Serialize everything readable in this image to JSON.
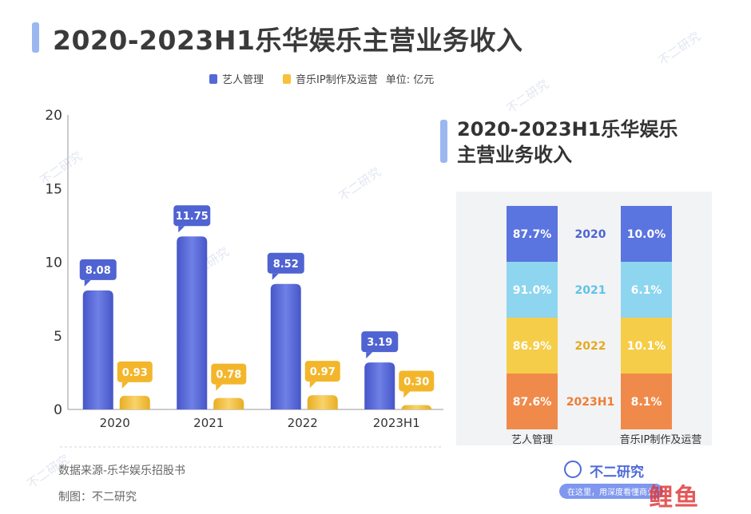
{
  "title": "2020-2023H1乐华娱乐主营业务收入",
  "legend": {
    "artist": "艺人管理",
    "music": "音乐IP制作及运营",
    "unit": "单位: 亿元"
  },
  "colors": {
    "artist": "#5668d6",
    "music": "#f5c23a",
    "accent_bar": "#9bb7f0",
    "pct_2020": "#5a74e0",
    "pct_2021": "#8ed5f0",
    "pct_2022": "#f6cd49",
    "pct_2023": "#f08a4b"
  },
  "chart_data": [
    {
      "type": "bar",
      "categories": [
        "2020",
        "2021",
        "2022",
        "2023H1"
      ],
      "series": [
        {
          "name": "艺人管理",
          "values": [
            8.08,
            11.75,
            8.52,
            3.19
          ]
        },
        {
          "name": "音乐IP制作及运营",
          "values": [
            0.93,
            0.78,
            0.97,
            0.3
          ]
        }
      ],
      "value_labels": [
        [
          "8.08",
          "11.75",
          "8.52",
          "3.19"
        ],
        [
          "0.93",
          "0.78",
          "0.97",
          "0.30"
        ]
      ],
      "ylim": [
        0,
        20
      ],
      "yticks": [
        "0",
        "5",
        "10",
        "15",
        "20"
      ],
      "unit": "单位: 亿元",
      "legend": "top"
    },
    {
      "type": "table",
      "title": "2020-2023H1乐华娱乐主营业务收入",
      "years": [
        "2020",
        "2021",
        "2022",
        "2023H1"
      ],
      "columns": [
        {
          "name": "艺人管理",
          "values": [
            "87.7%",
            "91.0%",
            "86.9%",
            "87.6%"
          ]
        },
        {
          "name": "音乐IP制作及运营",
          "values": [
            "10.0%",
            "6.1%",
            "10.1%",
            "8.1%"
          ]
        }
      ]
    }
  ],
  "footer": {
    "source": "数据来源-乐华娱乐招股书",
    "credit": "制图：不二研究"
  },
  "brand": {
    "name": "不二研究",
    "slogan": "在这里，用深度看懂商业",
    "stamp": "鲤鱼"
  },
  "watermark": "不二研究"
}
